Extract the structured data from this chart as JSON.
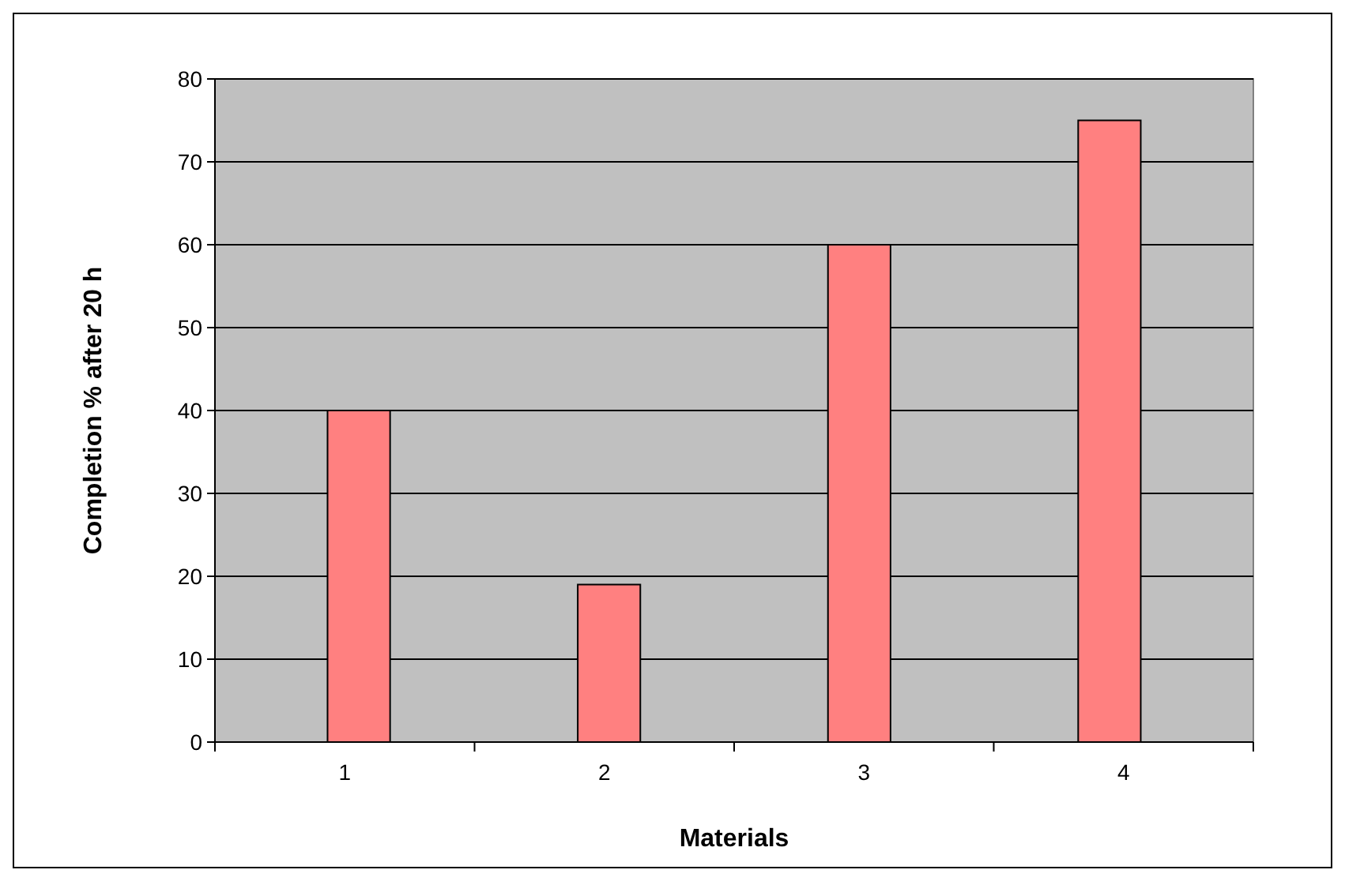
{
  "chart_data": {
    "type": "bar",
    "xlabel": "Materials",
    "ylabel": "Completion % after 20 h",
    "categories": [
      "1",
      "2",
      "3",
      "4"
    ],
    "values": [
      40,
      19,
      60,
      75
    ],
    "color": "#ff8080",
    "ylim": [
      0,
      80
    ],
    "yticks": [
      0,
      10,
      20,
      30,
      40,
      50,
      60,
      70,
      80
    ],
    "grid": "y"
  }
}
